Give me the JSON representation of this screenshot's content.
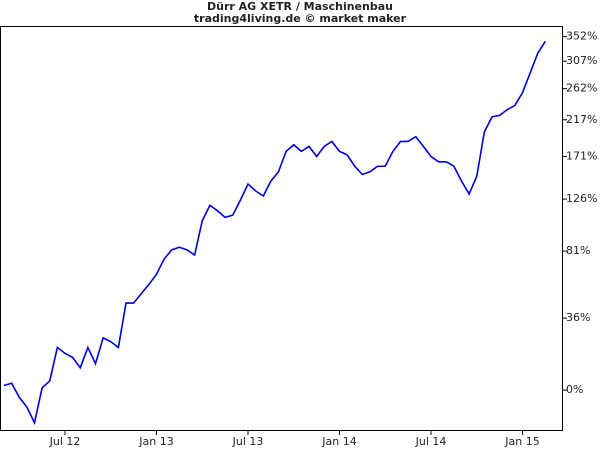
{
  "chart_data": {
    "type": "line",
    "title": "Dürr AG XETR / Maschinenbau",
    "subtitle": "trading4living.de © market maker",
    "categories": [
      null,
      null,
      null,
      null,
      null,
      null,
      null,
      null,
      "Jul 12",
      null,
      null,
      null,
      null,
      null,
      null,
      null,
      null,
      null,
      null,
      null,
      "Jan 13",
      null,
      null,
      null,
      null,
      null,
      null,
      null,
      null,
      null,
      null,
      null,
      "Jul 13",
      null,
      null,
      null,
      null,
      null,
      null,
      null,
      null,
      null,
      null,
      null,
      "Jan 14",
      null,
      null,
      null,
      null,
      null,
      null,
      null,
      null,
      null,
      null,
      null,
      "Jul 14",
      null,
      null,
      null,
      null,
      null,
      null,
      null,
      null,
      null,
      null,
      null,
      "Jan 15",
      null,
      null,
      null
    ],
    "series": [
      {
        "color": "#0000dd",
        "values": [
          2,
          3,
          -3,
          -7,
          -13,
          1,
          4,
          20,
          17,
          15,
          10,
          20,
          12,
          25,
          23,
          20,
          45,
          45,
          51,
          57,
          64,
          75,
          82,
          84,
          82,
          78,
          106,
          120,
          115,
          109,
          111,
          125,
          141,
          134,
          129,
          144,
          154,
          177,
          185,
          177,
          183,
          171,
          183,
          189,
          177,
          173,
          160,
          151,
          154,
          160,
          160,
          177,
          189,
          189,
          195,
          183,
          171,
          165,
          165,
          160,
          144,
          131,
          149,
          201,
          221,
          223,
          231,
          237,
          256,
          287,
          321,
          343
        ]
      }
    ],
    "yscale": "log",
    "ylim": [
      -16,
      371
    ],
    "yticks": [
      {
        "value": 0,
        "label": "0%"
      },
      {
        "value": 36,
        "label": "36%"
      },
      {
        "value": 81,
        "label": "81%"
      },
      {
        "value": 126,
        "label": "126%"
      },
      {
        "value": 171,
        "label": "171%"
      },
      {
        "value": 217,
        "label": "217%"
      },
      {
        "value": 262,
        "label": "262%"
      },
      {
        "value": 307,
        "label": "307%"
      },
      {
        "value": 352,
        "label": "352%"
      }
    ],
    "grid": false
  }
}
